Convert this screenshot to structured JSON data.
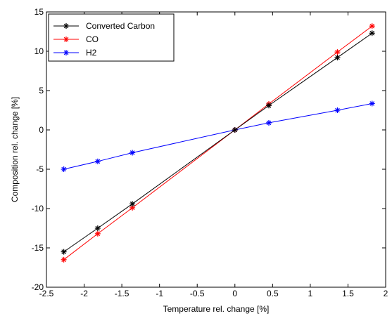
{
  "chart_data": {
    "type": "line",
    "xlabel": "Temperature rel. change [%]",
    "ylabel": "Composition rel. change [%]",
    "xlim": [
      -2.5,
      2
    ],
    "ylim": [
      -20,
      15
    ],
    "x_ticks": [
      "-2.5",
      "-2",
      "-1.5",
      "-1",
      "-0.5",
      "0",
      "0.5",
      "1",
      "1.5",
      "2"
    ],
    "y_ticks": [
      "-20",
      "-15",
      "-10",
      "-5",
      "0",
      "5",
      "10",
      "15"
    ],
    "grid": false,
    "legend_position": "top-left",
    "series": [
      {
        "name": "Converted Carbon",
        "color": "#000000",
        "marker": "asterisk",
        "x": [
          -2.27,
          -1.82,
          -1.36,
          0,
          0.45,
          1.36,
          1.82
        ],
        "y": [
          -15.5,
          -12.5,
          -9.4,
          0,
          3.1,
          9.2,
          12.3
        ]
      },
      {
        "name": "CO",
        "color": "#ff0000",
        "marker": "asterisk",
        "x": [
          -2.27,
          -1.82,
          -1.36,
          0,
          0.45,
          1.36,
          1.82
        ],
        "y": [
          -16.5,
          -13.2,
          -9.9,
          0,
          3.3,
          9.9,
          13.2
        ]
      },
      {
        "name": "H2",
        "color": "#0000ff",
        "marker": "asterisk",
        "x": [
          -2.27,
          -1.82,
          -1.36,
          0,
          0.45,
          1.36,
          1.82
        ],
        "y": [
          -5.0,
          -4.0,
          -2.9,
          0,
          0.9,
          2.5,
          3.35
        ]
      }
    ]
  }
}
